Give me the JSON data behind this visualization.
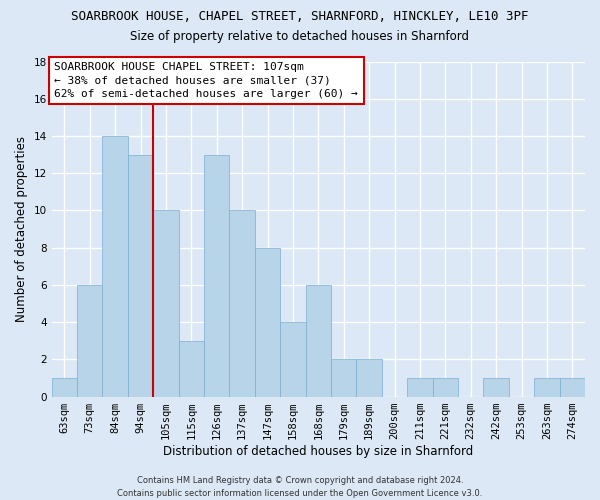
{
  "title": "SOARBROOK HOUSE, CHAPEL STREET, SHARNFORD, HINCKLEY, LE10 3PF",
  "subtitle": "Size of property relative to detached houses in Sharnford",
  "xlabel": "Distribution of detached houses by size in Sharnford",
  "ylabel": "Number of detached properties",
  "bar_color": "#b8d4e8",
  "bar_edge_color": "#7aaed0",
  "vline_color": "#cc0000",
  "vline_x_index": 4,
  "categories": [
    "63sqm",
    "73sqm",
    "84sqm",
    "94sqm",
    "105sqm",
    "115sqm",
    "126sqm",
    "137sqm",
    "147sqm",
    "158sqm",
    "168sqm",
    "179sqm",
    "189sqm",
    "200sqm",
    "211sqm",
    "221sqm",
    "232sqm",
    "242sqm",
    "253sqm",
    "263sqm",
    "274sqm"
  ],
  "values": [
    1,
    6,
    14,
    13,
    10,
    3,
    13,
    10,
    8,
    4,
    6,
    2,
    2,
    0,
    1,
    1,
    0,
    1,
    0,
    1,
    1
  ],
  "ylim": [
    0,
    18
  ],
  "yticks": [
    0,
    2,
    4,
    6,
    8,
    10,
    12,
    14,
    16,
    18
  ],
  "annotation_line1": "SOARBROOK HOUSE CHAPEL STREET: 107sqm",
  "annotation_line2": "← 38% of detached houses are smaller (37)",
  "annotation_line3": "62% of semi-detached houses are larger (60) →",
  "footer_line1": "Contains HM Land Registry data © Crown copyright and database right 2024.",
  "footer_line2": "Contains public sector information licensed under the Open Government Licence v3.0.",
  "background_color": "#dce8f5",
  "plot_bg_color": "#dce8f5",
  "grid_color": "#ffffff",
  "annotation_box_color": "#ffffff",
  "annotation_border_color": "#cc0000",
  "title_fontsize": 9,
  "subtitle_fontsize": 8.5,
  "annotation_fontsize": 8,
  "axis_label_fontsize": 8.5,
  "tick_fontsize": 7.5,
  "footer_fontsize": 6
}
